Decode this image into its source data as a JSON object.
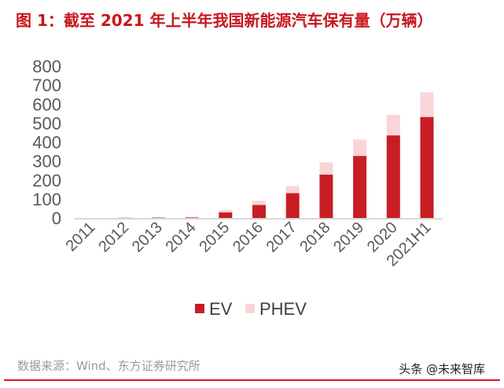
{
  "title": "图 1：截至 2021 年上半年我国新能源汽车保有量（万辆）",
  "source": "数据来源：Wind、东方证券研究所",
  "watermark": "头条 @未来智库",
  "chart_data": {
    "type": "bar",
    "stacked": true,
    "categories": [
      "2011",
      "2012",
      "2013",
      "2014",
      "2015",
      "2016",
      "2017",
      "2018",
      "2019",
      "2020",
      "2021H1"
    ],
    "series": [
      {
        "name": "EV",
        "color": "#c81e23",
        "values": [
          0,
          1,
          2,
          3,
          30,
          69,
          131,
          229,
          327,
          435,
          532
        ]
      },
      {
        "name": "PHEV",
        "color": "#f9d5d8",
        "values": [
          0,
          0,
          1,
          4,
          12,
          22,
          37,
          64,
          86,
          108,
          130
        ]
      }
    ],
    "ylim": [
      0,
      800
    ],
    "yticks": [
      0,
      100,
      200,
      300,
      400,
      500,
      600,
      700,
      800
    ],
    "grid": false,
    "legend": "bottom"
  }
}
